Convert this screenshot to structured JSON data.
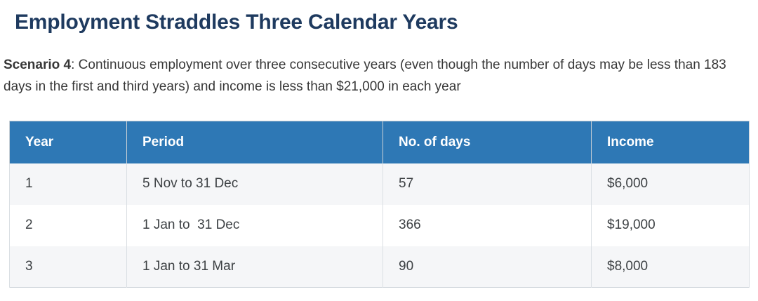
{
  "page": {
    "title": "Employment Straddles Three Calendar Years"
  },
  "intro": {
    "scenario_label": "Scenario 4",
    "text": ": Continuous employment over three consecutive years (even though the number of days may be less than 183 days in the first and third years) and income is less than $21,000 in each year"
  },
  "table": {
    "columns": [
      "Year",
      "Period",
      "No. of days",
      "Income"
    ],
    "rows": [
      {
        "year": "1",
        "period": "5 Nov to 31 Dec",
        "days": "57",
        "income": "$6,000"
      },
      {
        "year": "2",
        "period": "1 Jan to  31 Dec",
        "days": "366",
        "income": "$19,000"
      },
      {
        "year": "3",
        "period": "1 Jan to 31 Mar",
        "days": "90",
        "income": "$8,000"
      }
    ]
  },
  "colors": {
    "heading_text": "#1e3a5f",
    "table_header_bg": "#2e78b5",
    "table_header_text": "#ffffff",
    "row_stripe_bg": "#f5f6f8",
    "row_white_bg": "#ffffff",
    "table_border": "#c9d0d6",
    "body_text": "#373737"
  }
}
